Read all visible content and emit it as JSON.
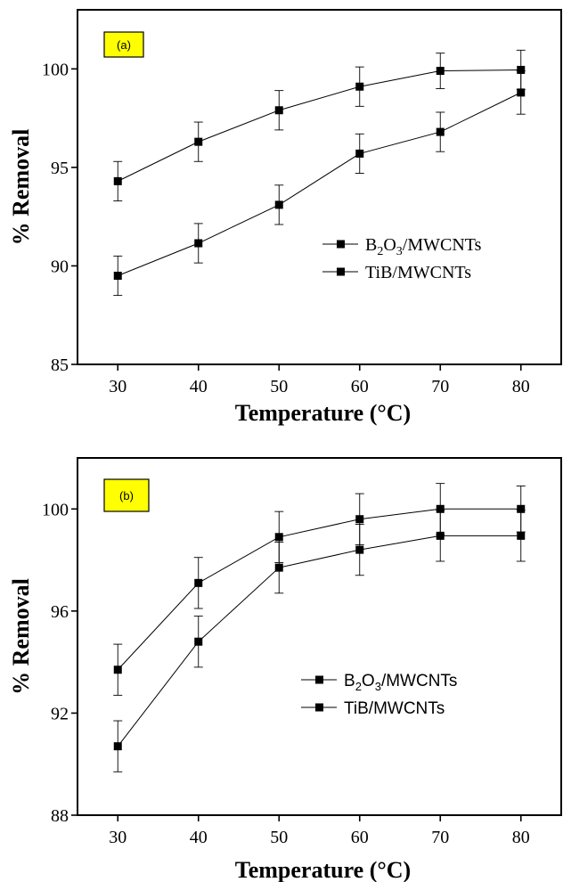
{
  "chart_data": [
    {
      "type": "line",
      "panel_label": "(a)",
      "panel_label_bg": "#ffff00",
      "xlabel": "Temperature (°C)",
      "ylabel": "% Removal",
      "x": [
        30,
        40,
        50,
        60,
        70,
        80
      ],
      "xlim": [
        25,
        85
      ],
      "ylim": [
        85,
        103
      ],
      "xticks": [
        30,
        40,
        50,
        60,
        70,
        80
      ],
      "yticks": [
        85,
        90,
        95,
        100
      ],
      "legend_position": "center-right",
      "legend_font": "serif",
      "marker": "square",
      "color": "#000000",
      "series": [
        {
          "name": "TiB/MWCNTs",
          "values": [
            94.3,
            96.3,
            97.9,
            99.1,
            99.9,
            99.95
          ],
          "error": [
            1.0,
            1.0,
            1.0,
            1.0,
            0.9,
            1.0
          ]
        },
        {
          "name": "B2O3/MWCNTs",
          "values": [
            89.5,
            91.15,
            93.1,
            95.7,
            96.8,
            98.8
          ],
          "error": [
            1.0,
            1.0,
            1.0,
            1.0,
            1.0,
            1.1
          ]
        }
      ],
      "legend": [
        {
          "base": "B",
          "sub1": "2",
          "mid": "O",
          "sub2": "3",
          "tail": "/MWCNTs"
        },
        {
          "base": "TiB/MWCNTs",
          "sub1": "",
          "mid": "",
          "sub2": "",
          "tail": ""
        }
      ]
    },
    {
      "type": "line",
      "panel_label": "(b)",
      "panel_label_bg": "#ffff00",
      "xlabel": "Temperature (°C)",
      "ylabel": "% Removal",
      "x": [
        30,
        40,
        50,
        60,
        70,
        80
      ],
      "xlim": [
        25,
        85
      ],
      "ylim": [
        88,
        102
      ],
      "xticks": [
        30,
        40,
        50,
        60,
        70,
        80
      ],
      "yticks": [
        88,
        92,
        96,
        100
      ],
      "legend_position": "center-right",
      "legend_font": "sans",
      "marker": "square",
      "color": "#000000",
      "series": [
        {
          "name": "TiB/MWCNTs",
          "values": [
            93.7,
            97.1,
            98.9,
            99.6,
            100.0,
            100.0
          ],
          "error": [
            1.0,
            1.0,
            1.0,
            1.0,
            1.0,
            0.9
          ]
        },
        {
          "name": "B2O3/MWCNTs",
          "values": [
            90.7,
            94.8,
            97.7,
            98.4,
            98.95,
            98.95
          ],
          "error": [
            1.0,
            1.0,
            1.0,
            1.0,
            1.0,
            1.0
          ]
        }
      ],
      "legend": [
        {
          "base": "B",
          "sub1": "2",
          "mid": "O",
          "sub2": "3",
          "tail": "/MWCNTs"
        },
        {
          "base": "TiB/MWCNTs",
          "sub1": "",
          "mid": "",
          "sub2": "",
          "tail": ""
        }
      ]
    }
  ]
}
